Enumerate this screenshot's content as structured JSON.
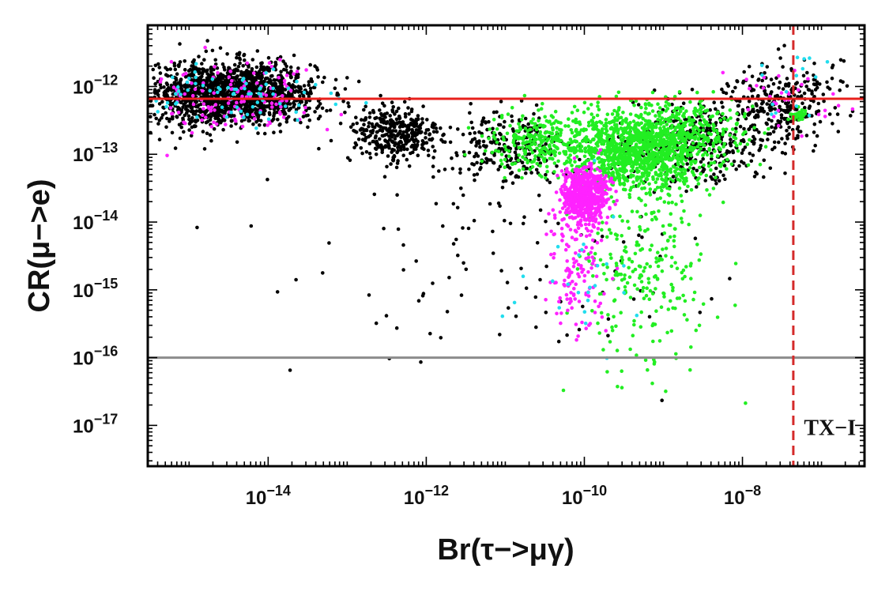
{
  "chart_data": {
    "type": "scatter",
    "title": "",
    "xlabel": "Br(τ−>μγ)",
    "ylabel": "CR(μ−>e)",
    "x_scale": "log",
    "y_scale": "log",
    "xlim": [
      3e-16,
      3.5e-07
    ],
    "ylim": [
      2.5e-18,
      8e-12
    ],
    "grid": false,
    "legend": "none",
    "x_ticks": [
      {
        "value": 1e-14,
        "base": "10",
        "exp": "−14"
      },
      {
        "value": 1e-12,
        "base": "10",
        "exp": "−12"
      },
      {
        "value": 1e-10,
        "base": "10",
        "exp": "−10"
      },
      {
        "value": 1e-08,
        "base": "10",
        "exp": "−8"
      }
    ],
    "y_ticks": [
      {
        "value": 1e-12,
        "base": "10",
        "exp": "−12"
      },
      {
        "value": 1e-13,
        "base": "10",
        "exp": "−13"
      },
      {
        "value": 1e-14,
        "base": "10",
        "exp": "−14"
      },
      {
        "value": 1e-15,
        "base": "10",
        "exp": "−15"
      },
      {
        "value": 1e-16,
        "base": "10",
        "exp": "−16"
      },
      {
        "value": 1e-17,
        "base": "10",
        "exp": "−17"
      }
    ],
    "reference_lines": [
      {
        "orientation": "horizontal",
        "value": 6.6e-13,
        "color": "#e8201c",
        "style": "solid"
      },
      {
        "orientation": "horizontal",
        "value": 1e-16,
        "color": "#8c8c8c",
        "style": "solid"
      },
      {
        "orientation": "vertical",
        "value": 4.4e-08,
        "color": "#d42a2a",
        "style": "dashed"
      }
    ],
    "annotations": [
      {
        "text": "TX−I",
        "x": 6e-08,
        "y": 1e-17
      }
    ],
    "series": [
      {
        "color": "#000000",
        "clusters": [
          {
            "cx": 5e-15,
            "cy": 8e-13,
            "sx": 0.45,
            "sy": 0.22,
            "n": 1300
          },
          {
            "cx": 1e-15,
            "cy": 7e-13,
            "sx": 0.35,
            "sy": 0.25,
            "n": 300
          },
          {
            "cx": 4e-13,
            "cy": 2e-13,
            "sx": 0.3,
            "sy": 0.22,
            "n": 350
          },
          {
            "cx": 1e-11,
            "cy": 1.2e-13,
            "sx": 0.4,
            "sy": 0.25,
            "n": 250
          },
          {
            "cx": 3e-09,
            "cy": 1.5e-13,
            "sx": 0.45,
            "sy": 0.3,
            "n": 350
          },
          {
            "cx": 3e-08,
            "cy": 6e-13,
            "sx": 0.35,
            "sy": 0.3,
            "n": 300
          },
          {
            "cx": 1e-11,
            "cy": 3e-15,
            "sx": 1.4,
            "sy": 0.9,
            "n": 110
          }
        ]
      },
      {
        "color": "#22ee22",
        "clusters": [
          {
            "cx": 5e-10,
            "cy": 1.2e-13,
            "sx": 0.4,
            "sy": 0.28,
            "n": 1200
          },
          {
            "cx": 3e-11,
            "cy": 1.5e-13,
            "sx": 0.35,
            "sy": 0.22,
            "n": 300
          },
          {
            "cx": 3e-09,
            "cy": 2e-13,
            "sx": 0.35,
            "sy": 0.25,
            "n": 200
          },
          {
            "cx": 6e-10,
            "cy": 2e-15,
            "sx": 0.4,
            "sy": 0.75,
            "n": 260
          },
          {
            "cx": 5e-08,
            "cy": 3.8e-13,
            "sx": 0.05,
            "sy": 0.04,
            "n": 40
          }
        ]
      },
      {
        "color": "#ff22ff",
        "clusters": [
          {
            "cx": 1e-10,
            "cy": 2.5e-14,
            "sx": 0.14,
            "sy": 0.2,
            "n": 650
          },
          {
            "cx": 8e-11,
            "cy": 2e-15,
            "sx": 0.2,
            "sy": 0.5,
            "n": 130
          },
          {
            "cx": 3e-15,
            "cy": 6e-13,
            "sx": 0.6,
            "sy": 0.25,
            "n": 130
          },
          {
            "cx": 3e-08,
            "cy": 8e-13,
            "sx": 0.35,
            "sy": 0.25,
            "n": 30
          }
        ]
      },
      {
        "color": "#22ddee",
        "clusters": [
          {
            "cx": 3e-15,
            "cy": 7e-13,
            "sx": 0.6,
            "sy": 0.25,
            "n": 80
          },
          {
            "cx": 1e-10,
            "cy": 3e-15,
            "sx": 0.5,
            "sy": 0.6,
            "n": 25
          },
          {
            "cx": 5e-08,
            "cy": 9e-13,
            "sx": 0.3,
            "sy": 0.3,
            "n": 15
          }
        ]
      }
    ]
  }
}
